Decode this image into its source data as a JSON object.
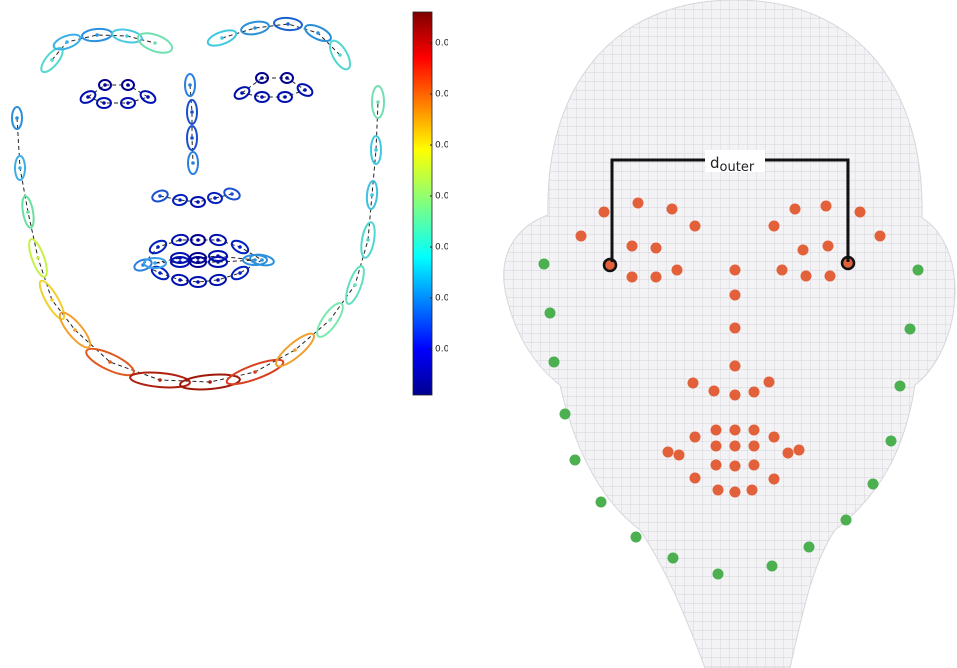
{
  "colorbar": {
    "tick_labels": [
      "0.0",
      "0.0",
      "0.0",
      "0.0",
      "0.0",
      "0.0",
      "0.0"
    ]
  },
  "annotation": {
    "base": "d",
    "subscript": "outer"
  }
}
